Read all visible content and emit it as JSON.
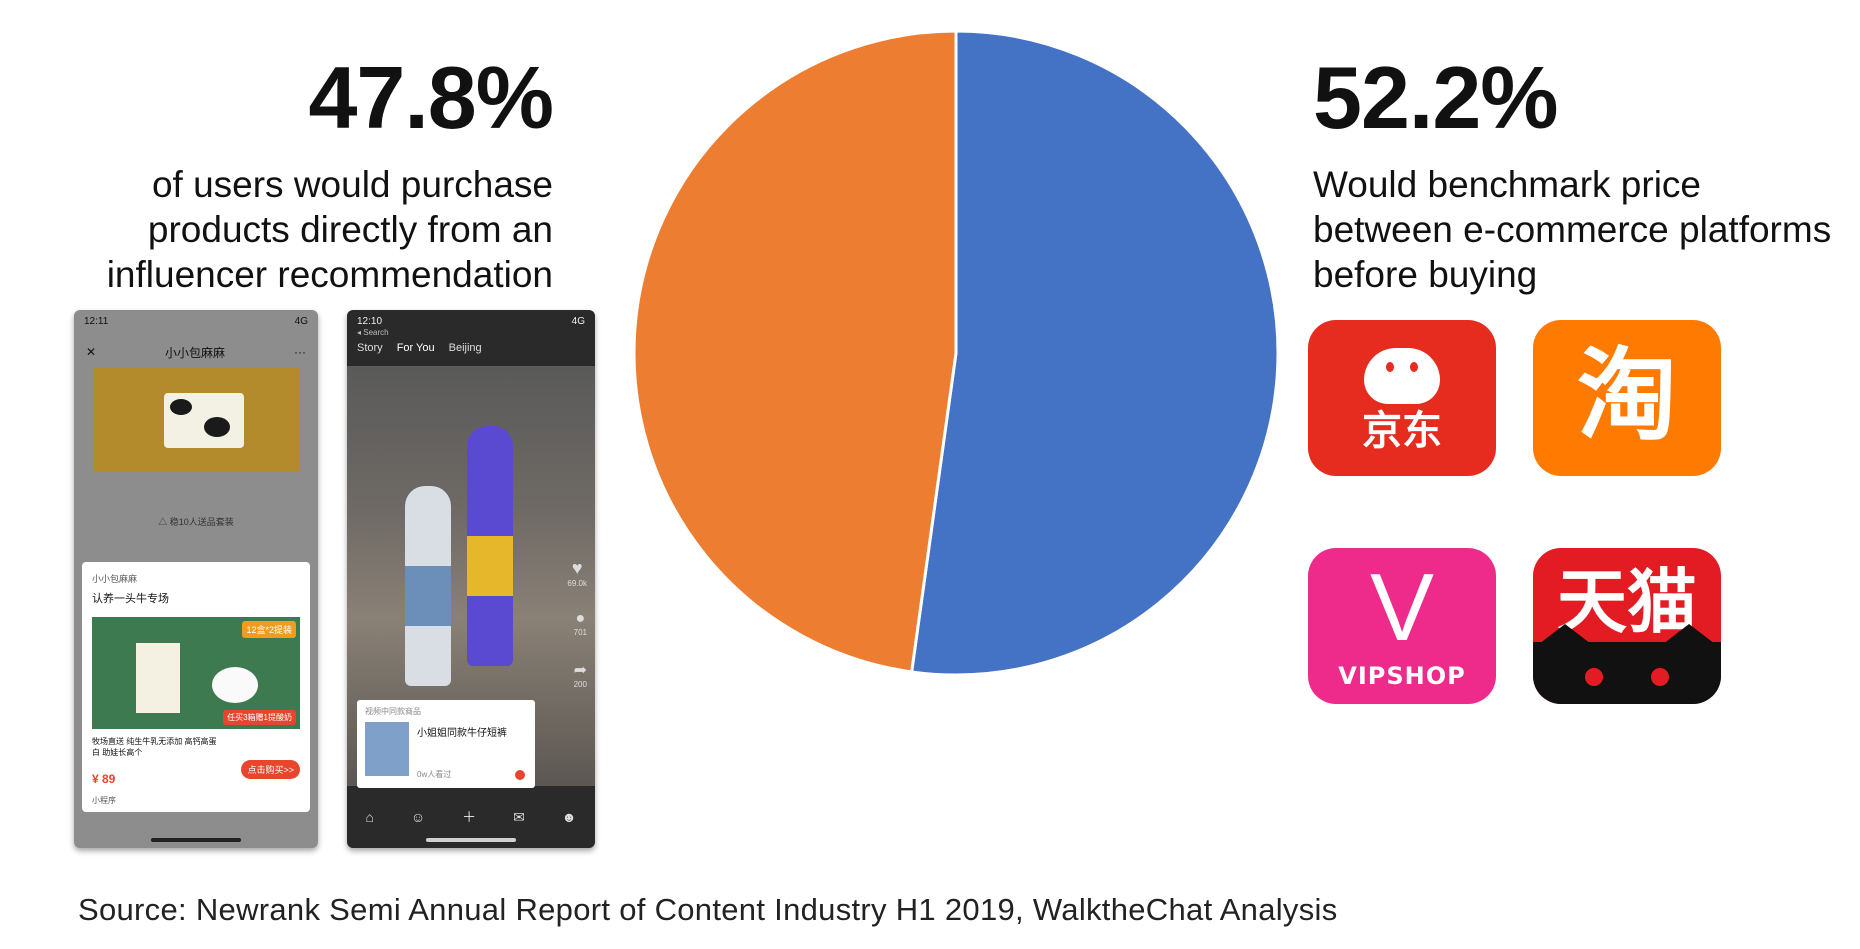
{
  "left_stat": {
    "value": "47.8%",
    "text": [
      "of users would purchase",
      "products directly from an",
      "influencer recommendation"
    ]
  },
  "right_stat": {
    "value": "52.2%",
    "text": [
      "Would benchmark price",
      "between e-commerce platforms",
      "before buying"
    ]
  },
  "chart_data": {
    "type": "pie",
    "slices": [
      {
        "label": "Would benchmark price between e-commerce platforms before buying",
        "value": 52.2,
        "color": "#4472c4"
      },
      {
        "label": "of users would purchase products directly from an influencer recommendation",
        "value": 47.8,
        "color": "#ed7d31"
      }
    ],
    "start": "top, clockwise"
  },
  "phone1": {
    "time": "12:11",
    "signal": "4G",
    "account": "小小包麻麻",
    "note": "△ 稳10人送品套装",
    "card_author": "小小包麻麻",
    "card_title": "认养一头牛专场",
    "tag": "12盒*2提装",
    "tag2": "任买3箱赠1提酸奶",
    "desc": "牧场直送 纯生牛乳无添加 高钙高蛋白 助娃长高个",
    "price": "¥ 89",
    "buy": "点击购买>>",
    "mini": "小程序"
  },
  "phone2": {
    "time": "12:10",
    "signal": "4G",
    "back": "◂ Search",
    "tabs": [
      "Story",
      "For You",
      "Beijing"
    ],
    "likes": "69.0k",
    "comments": "701",
    "shares": "200",
    "popup_header": "视频中同款商品",
    "popup_title": "小姐姐同款牛仔短裤",
    "popup_viewers": "0w人看过"
  },
  "apps": {
    "jd": "京东",
    "taobao": "淘",
    "vip_letter": "V",
    "vip": "VIPSHOP",
    "tmall": "天猫"
  },
  "source": "Source: Newrank Semi Annual Report of Content Industry H1 2019, WalktheChat Analysis"
}
